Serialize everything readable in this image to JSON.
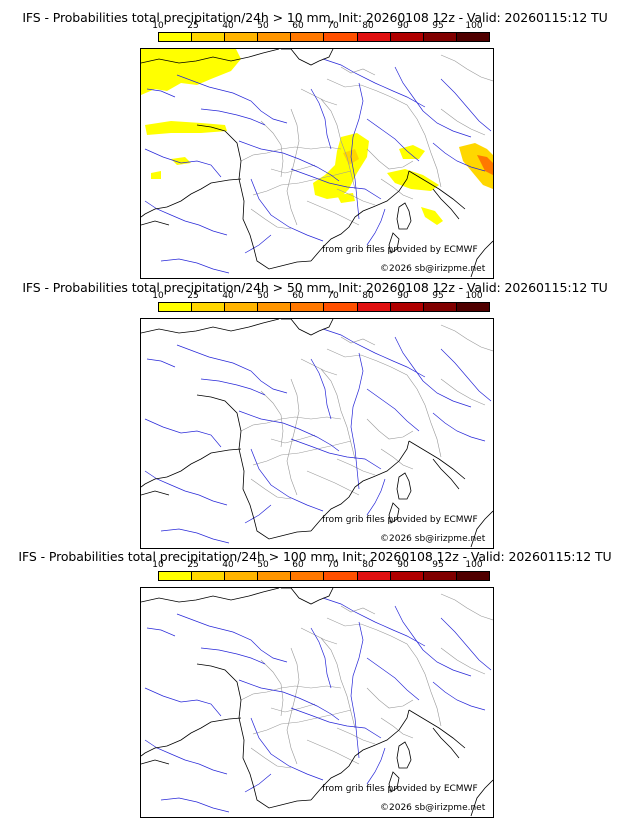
{
  "scale": {
    "ticks": [
      "10",
      "25",
      "40",
      "50",
      "60",
      "70",
      "80",
      "90",
      "95",
      "100"
    ],
    "colors": [
      "#ffff00",
      "#ffd700",
      "#ffb400",
      "#ff9600",
      "#ff7800",
      "#ff5000",
      "#e01010",
      "#b00000",
      "#800000",
      "#500000"
    ]
  },
  "panels": [
    {
      "title": "IFS - Probabilities total precipitation/24h > 10 mm, Init: 20260108 12z - Valid: 20260115:12 TU",
      "credit": "from grib files provided by ECMWF",
      "copyright": "©2026 sb@irizpme.net",
      "has_precip": true
    },
    {
      "title": "IFS - Probabilities total precipitation/24h > 50 mm, Init: 20260108 12z - Valid: 20260115:12 TU",
      "credit": "from grib files provided by ECMWF",
      "copyright": "©2026 sb@irizpme.net",
      "has_precip": false
    },
    {
      "title": "IFS - Probabilities total precipitation/24h > 100 mm, Init: 20260108 12z - Valid: 20260115:12 TU",
      "credit": "from grib files provided by ECMWF",
      "copyright": "©2026 sb@irizpme.net",
      "has_precip": false
    }
  ],
  "colors": {
    "coastline": "#000000",
    "rivers": "#2828d8",
    "borders": "#9a9a9a"
  }
}
